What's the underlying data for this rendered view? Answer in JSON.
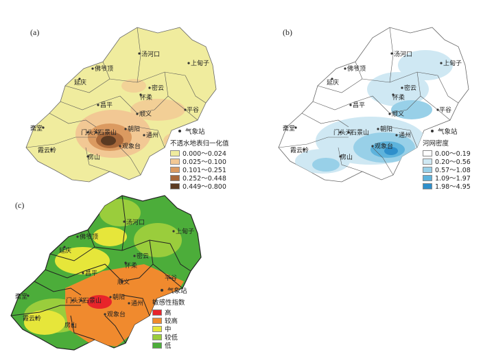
{
  "panels": [
    {
      "id": "a",
      "label": "(a)",
      "legend": {
        "station_label": "气象站",
        "title": "不透水地表归一化值",
        "classes": [
          {
            "label": "0.000～0.024",
            "color": "#f0ec9e"
          },
          {
            "label": "0.025～0.100",
            "color": "#f2c894"
          },
          {
            "label": "0.101～0.251",
            "color": "#db9a60"
          },
          {
            "label": "0.252～0.448",
            "color": "#a8683a"
          },
          {
            "label": "0.449～0.800",
            "color": "#5a3a22"
          }
        ]
      },
      "districts": [
        "汤河口",
        "上甸子",
        "佛爷顶",
        "延庆",
        "怀柔",
        "密云",
        "昌平",
        "顺义",
        "平谷",
        "斋堂",
        "门头沟",
        "石景山",
        "朝阳",
        "通州",
        "霞云岭",
        "房山",
        "观象台"
      ]
    },
    {
      "id": "b",
      "label": "(b)",
      "legend": {
        "station_label": "气象站",
        "title": "河网密度",
        "classes": [
          {
            "label": "0.00～0.19",
            "color": "#ffffff"
          },
          {
            "label": "0.20～0.56",
            "color": "#cfe8f3"
          },
          {
            "label": "0.57～1.08",
            "color": "#98d0e8"
          },
          {
            "label": "1.09～1.97",
            "color": "#5db3dc"
          },
          {
            "label": "1.98～4.95",
            "color": "#2e8fcb"
          }
        ]
      },
      "districts": [
        "汤河口",
        "上甸子",
        "佛爷顶",
        "延庆",
        "怀柔",
        "密云",
        "昌平",
        "顺义",
        "平谷",
        "斋堂",
        "门头沟",
        "石景山",
        "朝阳",
        "通州",
        "霞云岭",
        "房山",
        "观象台"
      ]
    },
    {
      "id": "c",
      "label": "(c)",
      "legend": {
        "station_label": "气象站",
        "title": "敏感性指数",
        "classes": [
          {
            "label": "高",
            "color": "#e8242a"
          },
          {
            "label": "较高",
            "color": "#f08a2e"
          },
          {
            "label": "中",
            "color": "#e6e63a"
          },
          {
            "label": "较低",
            "color": "#9acd3c"
          },
          {
            "label": "低",
            "color": "#4cad3a"
          }
        ]
      },
      "districts": [
        "汤河口",
        "上甸子",
        "佛爷顶",
        "延庆",
        "怀柔",
        "密云",
        "昌平",
        "顺义",
        "平谷",
        "斋堂",
        "门头沟",
        "石景山",
        "朝阳",
        "通州",
        "霞云岭",
        "房山",
        "观象台"
      ]
    }
  ]
}
